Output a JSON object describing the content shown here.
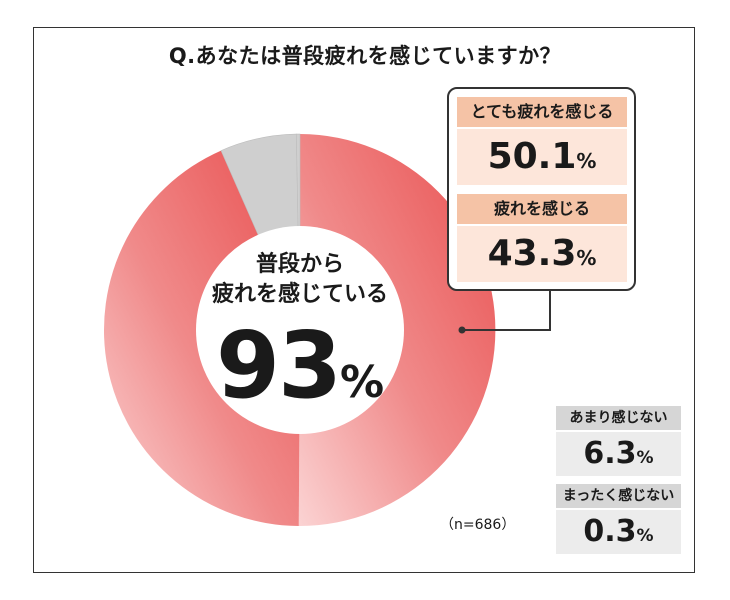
{
  "title": "Q.あなたは普段疲れを感じていますか？",
  "center": {
    "line1": "普段から",
    "line2": "疲れを感じている",
    "value": "93",
    "unit": "%"
  },
  "sample_size": "（n=686）",
  "colors": {
    "red_dark": "#ec5a5a",
    "red_light": "#f7c0c0",
    "gray": "#cfcfcf"
  },
  "boxes": [
    {
      "label": "とても疲れを感じる",
      "value": "50.1",
      "unit": "%"
    },
    {
      "label": "疲れを感じる",
      "value": "43.3",
      "unit": "%"
    },
    {
      "label": "あまり感じない",
      "value": "6.3",
      "unit": "%"
    },
    {
      "label": "まったく感じない",
      "value": "0.3",
      "unit": "%"
    }
  ],
  "chart_data": {
    "type": "pie",
    "title": "Q.あなたは普段疲れを感じていますか？",
    "categories": [
      "とても疲れを感じる",
      "疲れを感じる",
      "あまり感じない",
      "まったく感じない"
    ],
    "values": [
      50.1,
      43.3,
      6.3,
      0.3
    ],
    "unit": "%",
    "n": 686,
    "center_summary": {
      "label": "普段から疲れを感じている",
      "value": 93,
      "unit": "%"
    }
  }
}
